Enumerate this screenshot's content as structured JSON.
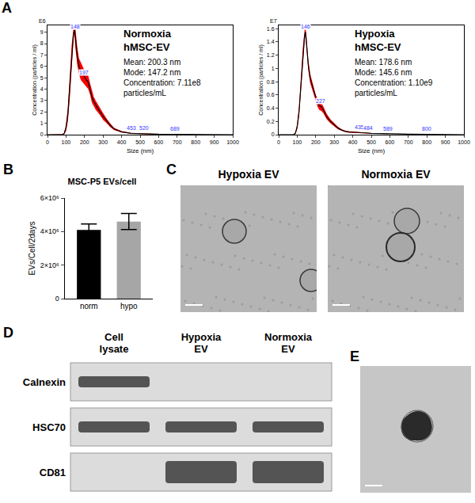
{
  "chart_data": [
    {
      "panel": "A",
      "type": "line",
      "title": "Normoxia hMSC-EV",
      "annotations": [
        "Mean: 200.3 nm",
        "Mode: 147.2 nm",
        "Concentration: 7.11e8 particles/mL"
      ],
      "x_label": "Size (nm)",
      "y_label": "Concentration (particles / ml)",
      "y_exponent": "E6",
      "x": [
        0,
        50,
        80,
        90,
        100,
        110,
        120,
        130,
        140,
        145,
        150,
        160,
        170,
        180,
        190,
        200,
        210,
        220,
        230,
        240,
        250,
        260,
        280,
        300,
        320,
        340,
        360,
        380,
        400,
        450,
        500,
        550,
        600,
        700,
        800,
        900,
        1000
      ],
      "values": [
        0,
        0,
        0,
        0.1,
        0.6,
        1.8,
        4.0,
        6.8,
        8.8,
        9.2,
        8.6,
        7.0,
        6.0,
        5.6,
        5.3,
        5.0,
        4.8,
        4.6,
        4.0,
        3.3,
        2.9,
        2.6,
        2.1,
        1.6,
        1.2,
        0.8,
        0.5,
        0.35,
        0.25,
        0.12,
        0.08,
        0.05,
        0.04,
        0.03,
        0.02,
        0.01,
        0
      ],
      "error": [
        0,
        0,
        0,
        0.05,
        0.3,
        0.6,
        0.9,
        1.0,
        0.5,
        0.3,
        0.9,
        0.8,
        0.7,
        0.8,
        0.7,
        0.6,
        0.6,
        0.6,
        0.5,
        0.5,
        0.4,
        0.4,
        0.3,
        0.3,
        0.2,
        0.15,
        0.1,
        0.08,
        0.06,
        0.04,
        0.03,
        0.02,
        0.02,
        0.01,
        0.01,
        0,
        0
      ],
      "color": "#000000",
      "error_color": "#ff0000",
      "peaks": {
        "x": [
          148,
          197,
          453,
          520,
          689
        ],
        "y": [
          9.0,
          5.0,
          0.1,
          0.08,
          0.03
        ],
        "color": "#3333ff"
      },
      "xlim": [
        0,
        1000
      ],
      "xticks": [
        0,
        100,
        200,
        300,
        400,
        500,
        600,
        700,
        800,
        900,
        1000
      ],
      "ylim": [
        0,
        9.6
      ],
      "yticks": [
        0,
        1,
        2,
        3,
        4,
        5,
        6,
        7,
        8,
        9
      ]
    },
    {
      "type": "line",
      "title": "Hypoxia hMSC-EV",
      "annotations": [
        "Mean: 178.6 nm",
        "Mode: 145.6 nm",
        "Concentration: 1.10e9 particles/mL"
      ],
      "x_label": "Size (nm)",
      "y_label": "Concentration (particles / ml)",
      "y_exponent": "E7",
      "x": [
        0,
        50,
        80,
        90,
        100,
        110,
        120,
        130,
        140,
        145,
        150,
        160,
        170,
        180,
        190,
        200,
        210,
        220,
        230,
        240,
        250,
        260,
        280,
        300,
        320,
        340,
        360,
        380,
        400,
        450,
        500,
        550,
        600,
        700,
        800,
        900,
        1000
      ],
      "values": [
        0,
        0,
        0,
        0.02,
        0.12,
        0.35,
        0.75,
        1.2,
        1.5,
        1.55,
        1.4,
        1.05,
        0.85,
        0.75,
        0.65,
        0.55,
        0.48,
        0.44,
        0.42,
        0.38,
        0.32,
        0.27,
        0.2,
        0.15,
        0.1,
        0.07,
        0.05,
        0.04,
        0.035,
        0.03,
        0.02,
        0.015,
        0.01,
        0.008,
        0.005,
        0.002,
        0
      ],
      "error": [
        0,
        0,
        0,
        0.01,
        0.04,
        0.08,
        0.1,
        0.1,
        0.08,
        0.06,
        0.08,
        0.08,
        0.07,
        0.06,
        0.05,
        0.05,
        0.06,
        0.07,
        0.06,
        0.05,
        0.04,
        0.04,
        0.03,
        0.02,
        0.02,
        0.01,
        0.01,
        0.01,
        0.01,
        0.01,
        0.005,
        0.005,
        0,
        0,
        0,
        0,
        0
      ],
      "color": "#000000",
      "error_color": "#ff0000",
      "peaks": {
        "x": [
          146,
          227,
          435,
          484,
          589,
          800
        ],
        "y": [
          1.55,
          0.43,
          0.03,
          0.02,
          0.01,
          0.005
        ],
        "color": "#3333ff"
      },
      "xlim": [
        0,
        1000
      ],
      "xticks": [
        0,
        100,
        200,
        300,
        400,
        500,
        600,
        700,
        800,
        900,
        1000
      ],
      "ylim": [
        0,
        1.65
      ],
      "yticks": [
        0,
        0.2,
        0.4,
        0.6,
        0.8,
        1,
        1.2,
        1.4,
        1.6
      ]
    },
    {
      "panel": "B",
      "type": "bar",
      "title": "MSC-P5 EVs/cell",
      "y_label": "EVs/Cell/2days",
      "categories": [
        "norm",
        "hypo"
      ],
      "values": [
        4100000,
        4600000
      ],
      "error": [
        350000,
        480000
      ],
      "colors": [
        "#000000",
        "#a6a6a6"
      ],
      "ylim": [
        0,
        6000000
      ],
      "yticks": [
        0,
        {
          "value": 2000000,
          "label": "2×10⁶"
        },
        {
          "value": 4000000,
          "label": "4×10⁶"
        },
        {
          "value": 6000000,
          "label": "6×10⁶"
        }
      ]
    }
  ],
  "images": {
    "C": {
      "panel": "C",
      "labels": [
        "Hypoxia EV",
        "Normoxia EV"
      ]
    },
    "D": {
      "panel": "D",
      "columns": [
        "Cell lysate",
        "Hypoxia EV",
        "Normoxia EV"
      ],
      "rows": [
        {
          "label": "Calnexin",
          "bands": [
            1,
            0,
            0
          ]
        },
        {
          "label": "HSC70",
          "bands": [
            1,
            1,
            1
          ]
        },
        {
          "label": "CD81",
          "bands": [
            0,
            1,
            1
          ]
        }
      ]
    },
    "E": {
      "panel": "E"
    }
  }
}
